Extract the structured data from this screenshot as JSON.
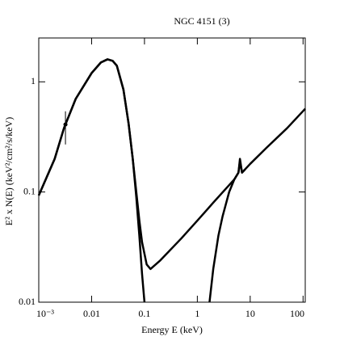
{
  "chart_data": {
    "type": "line",
    "title": "NGC 4151 (3)",
    "x_label": "Energy E (keV)",
    "y_label": "E² x N(E) (keV²/cm²/s/keV)",
    "x_log": true,
    "y_log": true,
    "xlim": [
      0.001,
      110
    ],
    "ylim": [
      0.01,
      2.5
    ],
    "xticks": [
      {
        "value": 0.001,
        "label": "10⁻³"
      },
      0.01,
      0.1,
      1,
      10,
      100
    ],
    "yticks": [
      0.01,
      0.1,
      1
    ],
    "color": "#000000",
    "series": [
      {
        "color": "#000000",
        "x": [
          0.001,
          0.002,
          0.003,
          0.005,
          0.01,
          0.015,
          0.02,
          0.025,
          0.03,
          0.04,
          0.05,
          0.06,
          0.07,
          0.08,
          0.09,
          0.1
        ],
        "values": [
          0.093,
          0.2,
          0.38,
          0.7,
          1.2,
          1.5,
          1.6,
          1.55,
          1.4,
          0.85,
          0.42,
          0.2,
          0.09,
          0.04,
          0.018,
          0.01
        ]
      },
      {
        "color": "#000000",
        "x": [
          0.001,
          0.002,
          0.003,
          0.005,
          0.01,
          0.015,
          0.02,
          0.025,
          0.03,
          0.04,
          0.05,
          0.06,
          0.07,
          0.08,
          0.09,
          0.11,
          0.13,
          0.2,
          0.5,
          1,
          2,
          5,
          6,
          6.4,
          7,
          10,
          20,
          50,
          110
        ],
        "values": [
          0.093,
          0.2,
          0.38,
          0.7,
          1.2,
          1.5,
          1.6,
          1.55,
          1.4,
          0.85,
          0.42,
          0.2,
          0.1,
          0.055,
          0.035,
          0.022,
          0.02,
          0.024,
          0.038,
          0.055,
          0.08,
          0.13,
          0.15,
          0.19,
          0.15,
          0.18,
          0.25,
          0.38,
          0.57
        ]
      },
      {
        "color": "#000000",
        "x": [
          1.7,
          2,
          2.5,
          3,
          4,
          5,
          6,
          6.4,
          7,
          8
        ],
        "values": [
          0.01,
          0.02,
          0.04,
          0.06,
          0.1,
          0.13,
          0.15,
          0.2,
          0.15,
          0.16
        ]
      }
    ],
    "points": {
      "x": [
        0.0032
      ],
      "values": [
        0.41
      ],
      "error_low": [
        0.27
      ],
      "error_high": [
        0.54
      ]
    }
  }
}
